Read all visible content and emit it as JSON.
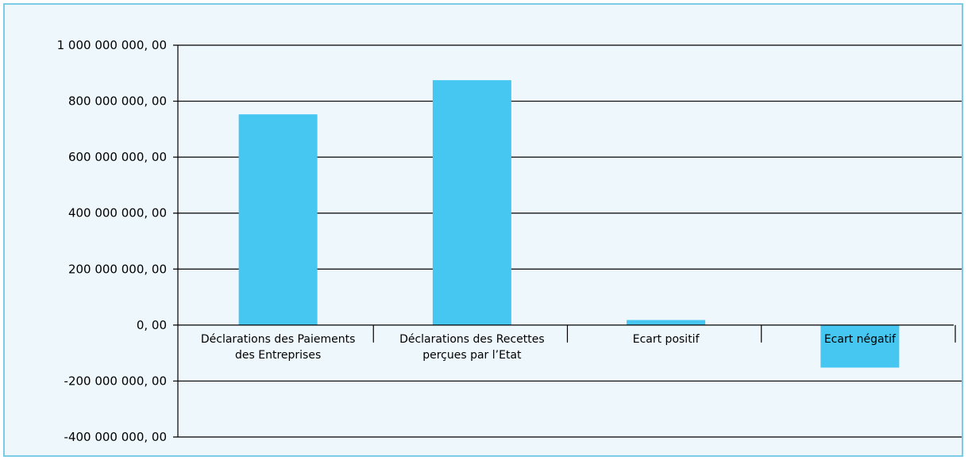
{
  "chart_data": {
    "type": "bar",
    "title": "",
    "xlabel": "",
    "ylabel": "",
    "categories": [
      [
        "Déclarations des Paiements",
        "des Entreprises"
      ],
      [
        "Déclarations des Recettes",
        "perçues par l’Etat"
      ],
      [
        "Ecart positif"
      ],
      [
        "Ecart négatif"
      ]
    ],
    "values": [
      753000000,
      875000000,
      18000000,
      -152000000
    ],
    "ylim": [
      -400000000,
      1000000000
    ],
    "yticks": [
      1000000000,
      800000000,
      600000000,
      400000000,
      200000000,
      0,
      -200000000,
      -400000000
    ],
    "ytick_labels": [
      "1 000 000 000, 00",
      "800 000 000, 00",
      "600 000 000, 00",
      "400 000 000, 00",
      "200 000 000, 00",
      "0, 00",
      "-200 000 000, 00",
      "-400 000 000, 00"
    ],
    "grid": true,
    "legend": "none",
    "colors": {
      "bar": "#45c7f2",
      "background": "#eef7fc",
      "frame": "#7ccbe6",
      "grid": "#000000"
    }
  }
}
